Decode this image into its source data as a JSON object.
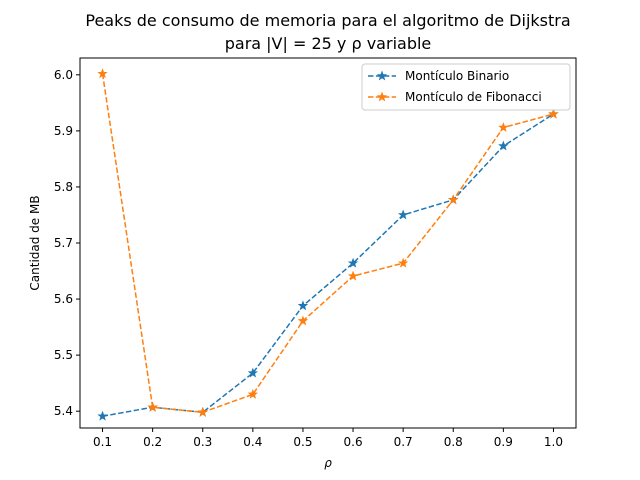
{
  "chart_data": {
    "type": "line",
    "title_line1": "Peaks de consumo de memoria para el algoritmo de Dijkstra",
    "title_line2": "para |V| = 25 y ρ variable",
    "xlabel": "ρ",
    "ylabel": "Cantidad de MB",
    "x": [
      0.1,
      0.2,
      0.3,
      0.4,
      0.5,
      0.6,
      0.7,
      0.8,
      0.9,
      1.0
    ],
    "x_tick_labels": [
      "0.1",
      "0.2",
      "0.3",
      "0.4",
      "0.5",
      "0.6",
      "0.7",
      "0.8",
      "0.9",
      "1.0"
    ],
    "y_ticks": [
      5.4,
      5.5,
      5.6,
      5.7,
      5.8,
      5.9,
      6.0
    ],
    "y_tick_labels": [
      "5.4",
      "5.5",
      "5.6",
      "5.7",
      "5.8",
      "5.9",
      "6.0"
    ],
    "xlim": [
      0.055,
      1.045
    ],
    "ylim": [
      5.37,
      6.03
    ],
    "grid": false,
    "legend_position": "top-right",
    "series": [
      {
        "name": "Montículo Binario",
        "color": "#1f77b4",
        "marker": "star",
        "linestyle": "dashed",
        "values": [
          5.391,
          5.407,
          5.398,
          5.468,
          5.588,
          5.664,
          5.75,
          5.777,
          5.873,
          5.93
        ]
      },
      {
        "name": "Montículo de Fibonacci",
        "color": "#ff7f0e",
        "marker": "star",
        "linestyle": "dashed",
        "values": [
          6.002,
          5.407,
          5.398,
          5.43,
          5.561,
          5.641,
          5.664,
          5.777,
          5.906,
          5.93
        ]
      }
    ]
  }
}
